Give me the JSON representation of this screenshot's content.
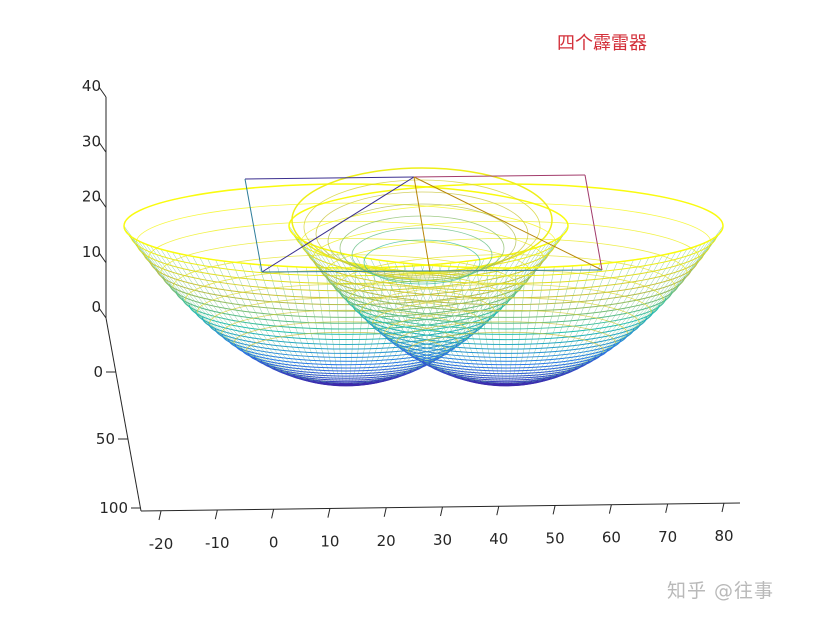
{
  "chart_data": {
    "type": "surface",
    "title": "四个霹雷器",
    "xlabel": "",
    "ylabel": "",
    "zlabel": "",
    "x_ticks": [
      -20,
      -10,
      0,
      10,
      20,
      30,
      40,
      50,
      60,
      70,
      80
    ],
    "y_ticks": [
      0,
      50,
      100
    ],
    "z_ticks": [
      0,
      10,
      20,
      30,
      40
    ],
    "xlim": [
      -20,
      80
    ],
    "ylim": [
      0,
      100
    ],
    "zlim": [
      0,
      40
    ],
    "grid": false,
    "colormap": "parula",
    "colors": {
      "surface_low": "#3e26a8",
      "surface_mid": "#24bfb0",
      "surface_high": "#f9fb0e",
      "title": "#d3303a",
      "axis": "#262626"
    },
    "surfaces": [
      {
        "type": "paraboloid",
        "center_x": 10,
        "center_y": 50,
        "radius": 40,
        "z_min": 0,
        "z_max": 20
      },
      {
        "type": "paraboloid",
        "center_x": 50,
        "center_y": 50,
        "radius": 40,
        "z_min": 0,
        "z_max": 20
      }
    ],
    "wireframe_box": {
      "x": [
        0,
        60
      ],
      "y": [
        20,
        80
      ],
      "z": [
        0,
        20
      ],
      "colors": [
        "#3b2f8f",
        "#a23b6b",
        "#2e7d9a",
        "#b8860b"
      ]
    }
  },
  "watermark": "知乎 @往事"
}
